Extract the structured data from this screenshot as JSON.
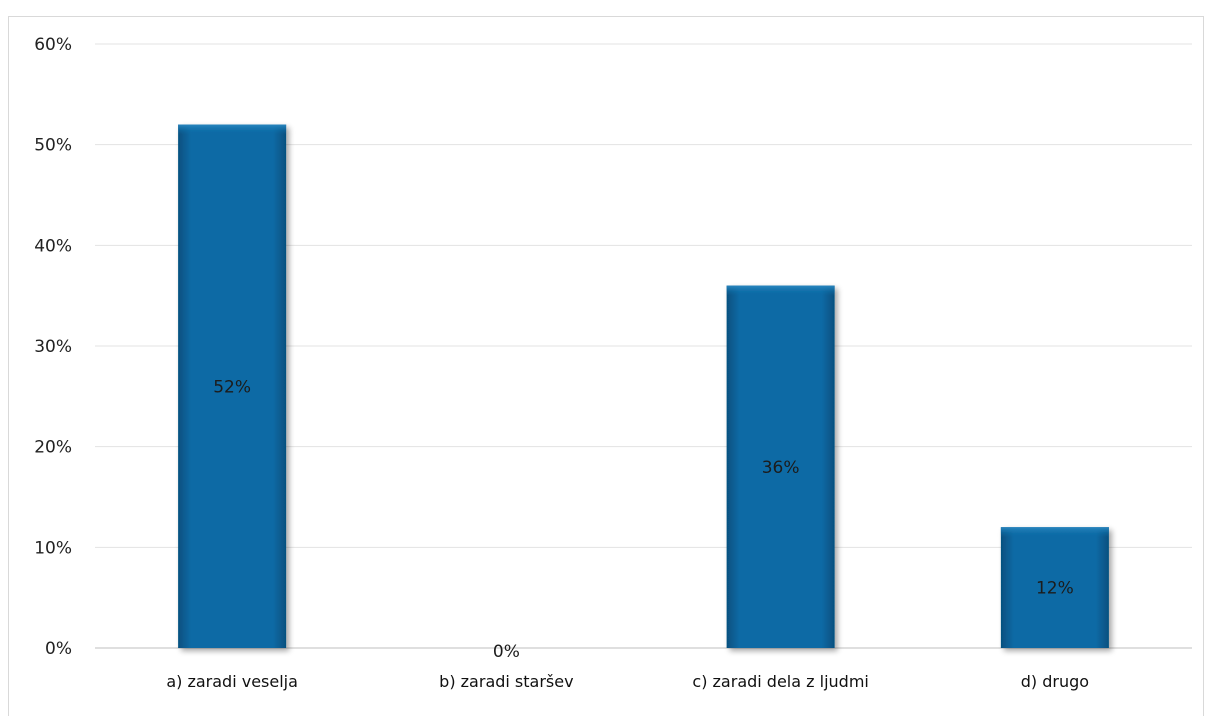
{
  "chart_data": {
    "type": "bar",
    "categories": [
      "a) zaradi veselja",
      "b) zaradi staršev",
      "c) zaradi dela z ljudmi",
      "d) drugo"
    ],
    "values": [
      52,
      0,
      36,
      12
    ],
    "data_labels": [
      "52%",
      "0%",
      "36%",
      "12%"
    ],
    "ylim": [
      0,
      60
    ],
    "yticks": [
      0,
      10,
      20,
      30,
      40,
      50,
      60
    ],
    "ytick_labels": [
      "0%",
      "10%",
      "20%",
      "30%",
      "40%",
      "50%",
      "60%"
    ],
    "bar_color": "#0b6aa5",
    "grid": true,
    "legend": "none"
  }
}
